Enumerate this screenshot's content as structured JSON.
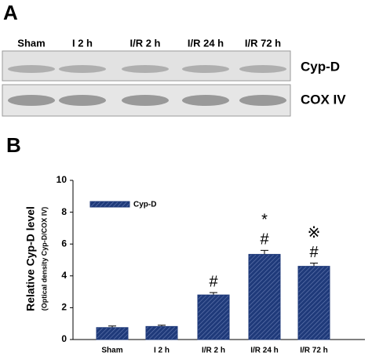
{
  "panel_a": {
    "label": "A",
    "lanes": [
      "Sham",
      "I 2 h",
      "I/R 2 h",
      "I/R 24 h",
      "I/R 72 h"
    ],
    "bands": [
      "Cyp-D",
      "COX IV"
    ]
  },
  "chart_data": {
    "type": "bar",
    "panel_label": "B",
    "y_label": "Relative Cyp-D level",
    "y_label_sub": "(Optical density Cyp-D/COX IV)",
    "categories": [
      "Sham",
      "I 2 h",
      "I/R 2 h",
      "I/R 24 h",
      "I/R 72 h"
    ],
    "series": [
      {
        "name": "Cyp-D",
        "color": "#1f3a7a",
        "values": [
          0.75,
          0.82,
          2.8,
          5.35,
          4.6
        ],
        "errors": [
          0.1,
          0.08,
          0.15,
          0.25,
          0.2
        ]
      }
    ],
    "significance": [
      null,
      null,
      [
        "#"
      ],
      [
        "*",
        "#"
      ],
      [
        "※",
        "#"
      ]
    ],
    "ylim": [
      0,
      10
    ],
    "yticks": [
      0,
      2,
      4,
      6,
      8,
      10
    ]
  }
}
